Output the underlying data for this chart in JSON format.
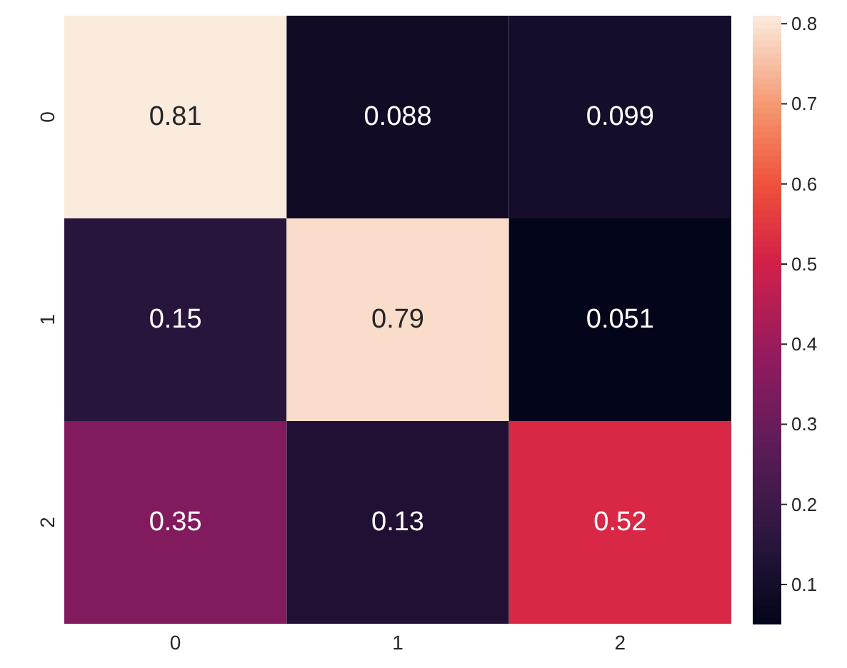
{
  "chart_data": {
    "type": "heatmap",
    "categories": [
      "0",
      "1",
      "2"
    ],
    "y_categories": [
      "0",
      "1",
      "2"
    ],
    "cells": [
      [
        0.81,
        0.088,
        0.099
      ],
      [
        0.15,
        0.79,
        0.051
      ],
      [
        0.35,
        0.13,
        0.52
      ]
    ],
    "clim": [
      0.051,
      0.81
    ],
    "cticks": [
      0.1,
      0.2,
      0.3,
      0.4,
      0.5,
      0.6,
      0.7,
      0.8
    ],
    "data_labels": true
  }
}
